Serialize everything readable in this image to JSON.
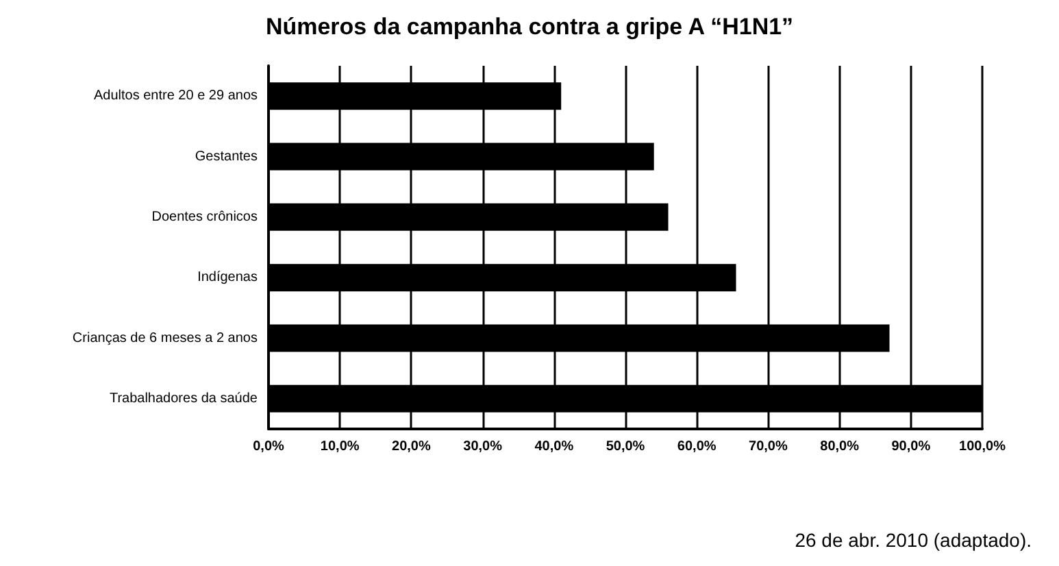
{
  "chart_data": {
    "type": "bar",
    "orientation": "horizontal",
    "title": "Números da campanha contra a gripe A “H1N1”",
    "categories": [
      "Adultos entre 20 e 29 anos",
      "Gestantes",
      "Doentes crônicos",
      "Indígenas",
      "Crianças de 6 meses a 2 anos",
      "Trabalhadores da saúde"
    ],
    "values": [
      41,
      54,
      56,
      65.5,
      87,
      100
    ],
    "color": "#000000",
    "xlim": [
      0,
      100
    ],
    "xticks": [
      {
        "value": 0,
        "label": "0,0%"
      },
      {
        "value": 10,
        "label": "10,0%"
      },
      {
        "value": 20,
        "label": "20,0%"
      },
      {
        "value": 30,
        "label": "30,0%"
      },
      {
        "value": 40,
        "label": "40,0%"
      },
      {
        "value": 50,
        "label": "50,0%"
      },
      {
        "value": 60,
        "label": "60,0%"
      },
      {
        "value": 70,
        "label": "70,0%"
      },
      {
        "value": 80,
        "label": "80,0%"
      },
      {
        "value": 90,
        "label": "90,0%"
      },
      {
        "value": 100,
        "label": "100,0%"
      }
    ],
    "grid": "x",
    "annotations": [
      "26 de abr. 2010 (adaptado)."
    ]
  }
}
